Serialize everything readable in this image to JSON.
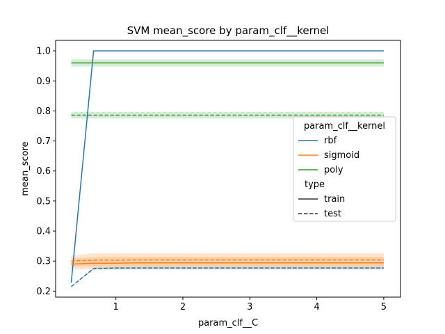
{
  "chart_data": {
    "type": "line",
    "title": "SVM mean_score by param_clf__kernel",
    "xlabel": "param_clf__C",
    "ylabel": "mean_score",
    "xlim": [
      0.1,
      5.25
    ],
    "ylim": [
      0.18,
      1.035
    ],
    "xticks": [
      1,
      2,
      3,
      4,
      5
    ],
    "yticks": [
      0.2,
      0.3,
      0.4,
      0.5,
      0.6,
      0.7,
      0.8,
      0.9,
      1.0
    ],
    "xtick_labels": [
      "1",
      "2",
      "3",
      "4",
      "5"
    ],
    "ytick_labels": [
      "0.2",
      "0.3",
      "0.4",
      "0.5",
      "0.6",
      "0.7",
      "0.8",
      "0.9",
      "1.0"
    ],
    "grid": false,
    "legend": {
      "placement": "center-right",
      "hue_title": "param_clf__kernel",
      "hue_entries": [
        "rbf",
        "sigmoid",
        "poly"
      ],
      "style_title": "type",
      "style_entries": [
        "train",
        "test"
      ]
    },
    "x": [
      0.333,
      0.667,
      1,
      1.333,
      1.667,
      2,
      2.333,
      2.667,
      3,
      3.333,
      3.667,
      4,
      4.333,
      4.667,
      5
    ],
    "series": [
      {
        "name": "rbf",
        "type": "train",
        "color": "#1f77b4",
        "dash": false,
        "values": [
          0.228,
          1.0,
          1.0,
          1.0,
          1.0,
          1.0,
          1.0,
          1.0,
          1.0,
          1.0,
          1.0,
          1.0,
          1.0,
          1.0,
          1.0
        ],
        "ci": [
          [
            0.228,
            0.228
          ],
          [
            1.0,
            1.0
          ],
          [
            1.0,
            1.0
          ],
          [
            1.0,
            1.0
          ],
          [
            1.0,
            1.0
          ],
          [
            1.0,
            1.0
          ],
          [
            1.0,
            1.0
          ],
          [
            1.0,
            1.0
          ],
          [
            1.0,
            1.0
          ],
          [
            1.0,
            1.0
          ],
          [
            1.0,
            1.0
          ],
          [
            1.0,
            1.0
          ],
          [
            1.0,
            1.0
          ],
          [
            1.0,
            1.0
          ],
          [
            1.0,
            1.0
          ]
        ]
      },
      {
        "name": "rbf",
        "type": "test",
        "color": "#1f77b4",
        "dash": true,
        "values": [
          0.215,
          0.275,
          0.277,
          0.277,
          0.277,
          0.277,
          0.277,
          0.277,
          0.277,
          0.277,
          0.277,
          0.277,
          0.277,
          0.277,
          0.277
        ],
        "ci": [
          [
            0.215,
            0.215
          ],
          [
            0.272,
            0.28
          ],
          [
            0.272,
            0.282
          ],
          [
            0.272,
            0.282
          ],
          [
            0.272,
            0.282
          ],
          [
            0.272,
            0.282
          ],
          [
            0.272,
            0.282
          ],
          [
            0.272,
            0.282
          ],
          [
            0.272,
            0.282
          ],
          [
            0.272,
            0.282
          ],
          [
            0.272,
            0.282
          ],
          [
            0.272,
            0.282
          ],
          [
            0.272,
            0.282
          ],
          [
            0.272,
            0.282
          ],
          [
            0.272,
            0.282
          ]
        ]
      },
      {
        "name": "sigmoid",
        "type": "train",
        "color": "#ff7f0e",
        "dash": false,
        "values": [
          0.29,
          0.293,
          0.293,
          0.294,
          0.294,
          0.294,
          0.294,
          0.294,
          0.294,
          0.294,
          0.294,
          0.294,
          0.294,
          0.294,
          0.294
        ],
        "ci": [
          [
            0.272,
            0.308
          ],
          [
            0.272,
            0.313
          ],
          [
            0.272,
            0.314
          ],
          [
            0.274,
            0.314
          ],
          [
            0.274,
            0.314
          ],
          [
            0.274,
            0.314
          ],
          [
            0.274,
            0.314
          ],
          [
            0.274,
            0.314
          ],
          [
            0.274,
            0.314
          ],
          [
            0.274,
            0.314
          ],
          [
            0.274,
            0.314
          ],
          [
            0.274,
            0.314
          ],
          [
            0.274,
            0.314
          ],
          [
            0.274,
            0.314
          ],
          [
            0.274,
            0.314
          ]
        ]
      },
      {
        "name": "sigmoid",
        "type": "test",
        "color": "#ff7f0e",
        "dash": true,
        "values": [
          0.3,
          0.303,
          0.303,
          0.304,
          0.304,
          0.304,
          0.304,
          0.304,
          0.304,
          0.304,
          0.304,
          0.304,
          0.304,
          0.304,
          0.304
        ],
        "ci": [
          [
            0.282,
            0.318
          ],
          [
            0.282,
            0.326
          ],
          [
            0.283,
            0.326
          ],
          [
            0.283,
            0.326
          ],
          [
            0.283,
            0.326
          ],
          [
            0.283,
            0.326
          ],
          [
            0.283,
            0.326
          ],
          [
            0.283,
            0.326
          ],
          [
            0.283,
            0.326
          ],
          [
            0.283,
            0.326
          ],
          [
            0.283,
            0.326
          ],
          [
            0.283,
            0.326
          ],
          [
            0.283,
            0.326
          ],
          [
            0.283,
            0.326
          ],
          [
            0.283,
            0.326
          ]
        ]
      },
      {
        "name": "poly",
        "type": "train",
        "color": "#2ca02c",
        "dash": false,
        "values": [
          0.96,
          0.96,
          0.96,
          0.96,
          0.96,
          0.96,
          0.96,
          0.96,
          0.96,
          0.96,
          0.96,
          0.96,
          0.96,
          0.96,
          0.96
        ],
        "ci": [
          [
            0.948,
            0.972
          ],
          [
            0.948,
            0.972
          ],
          [
            0.948,
            0.972
          ],
          [
            0.948,
            0.972
          ],
          [
            0.948,
            0.972
          ],
          [
            0.948,
            0.972
          ],
          [
            0.948,
            0.972
          ],
          [
            0.948,
            0.972
          ],
          [
            0.948,
            0.972
          ],
          [
            0.948,
            0.972
          ],
          [
            0.948,
            0.972
          ],
          [
            0.948,
            0.972
          ],
          [
            0.948,
            0.972
          ],
          [
            0.948,
            0.972
          ],
          [
            0.948,
            0.972
          ]
        ]
      },
      {
        "name": "poly",
        "type": "test",
        "color": "#2ca02c",
        "dash": true,
        "values": [
          0.786,
          0.786,
          0.786,
          0.786,
          0.786,
          0.786,
          0.786,
          0.786,
          0.786,
          0.786,
          0.786,
          0.786,
          0.786,
          0.786,
          0.786
        ],
        "ci": [
          [
            0.775,
            0.797
          ],
          [
            0.775,
            0.797
          ],
          [
            0.775,
            0.797
          ],
          [
            0.775,
            0.797
          ],
          [
            0.775,
            0.797
          ],
          [
            0.775,
            0.797
          ],
          [
            0.775,
            0.797
          ],
          [
            0.775,
            0.797
          ],
          [
            0.775,
            0.797
          ],
          [
            0.775,
            0.797
          ],
          [
            0.775,
            0.797
          ],
          [
            0.775,
            0.797
          ],
          [
            0.775,
            0.797
          ],
          [
            0.775,
            0.797
          ],
          [
            0.775,
            0.797
          ]
        ]
      }
    ]
  }
}
